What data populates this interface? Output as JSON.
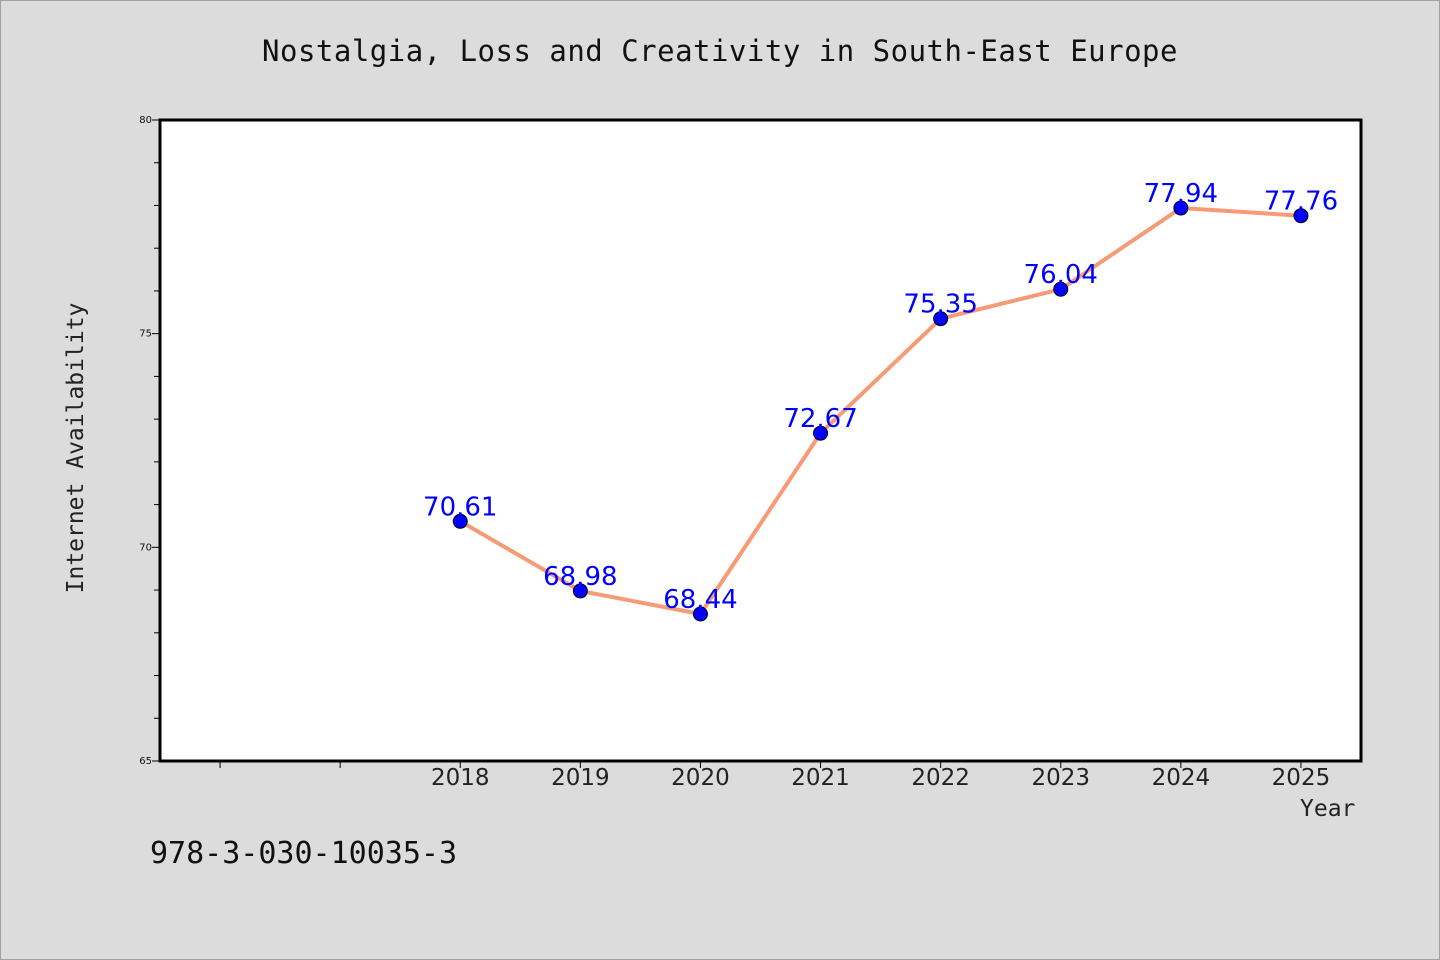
{
  "title": "Nostalgia, Loss and Creativity in South-East Europe",
  "footer_text": "978-3-030-10035-3",
  "chart_data": {
    "type": "line",
    "title": "Nostalgia, Loss and Creativity in South-East Europe",
    "xlabel": "Year",
    "ylabel": "Internet Availability",
    "x": [
      "2018",
      "2019",
      "2020",
      "2021",
      "2022",
      "2023",
      "2024",
      "2025"
    ],
    "series": [
      {
        "values": [
          70.61,
          68.98,
          68.44,
          72.67,
          75.35,
          76.04,
          77.94,
          77.76
        ],
        "labels": [
          "70.61",
          "68.98",
          "68.44",
          "72.67",
          "75.35",
          "76.04",
          "77.94",
          "77.76"
        ],
        "color": "#f79a76",
        "marker_color": "#0000ff",
        "label_color": "#0000ff"
      }
    ],
    "ylim": [
      65,
      80
    ],
    "yticks": [
      "65",
      "70",
      "75",
      "80"
    ],
    "grid": false,
    "legend": "none",
    "background": "#dcdcdc",
    "plot_background": "#ffffff"
  }
}
